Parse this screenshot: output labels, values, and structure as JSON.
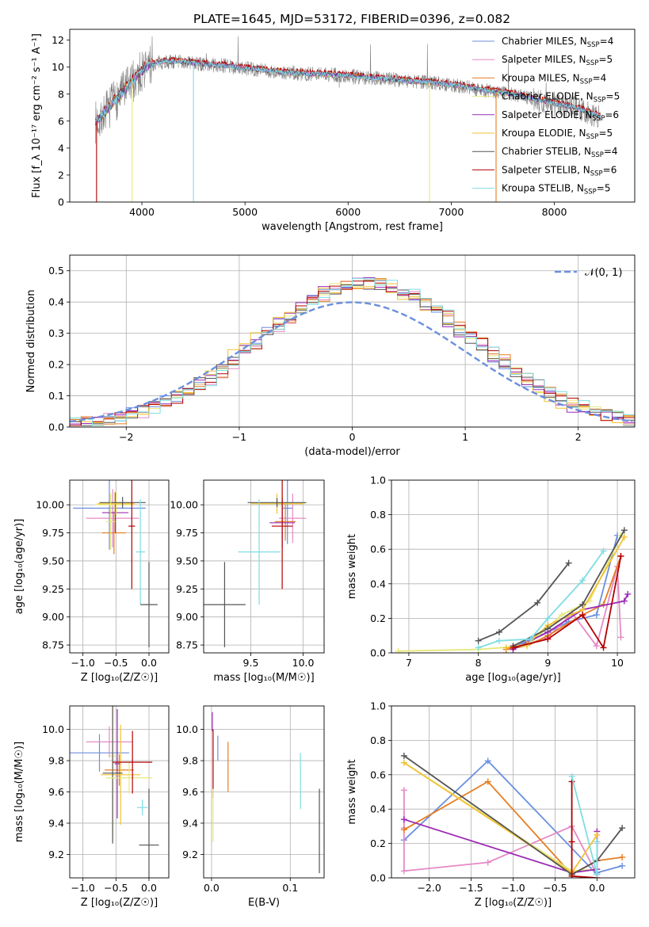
{
  "figure_title": "PLATE=1645, MJD=53172, FIBERID=0396, z=0.082",
  "colors": {
    "chab_miles": "#6b8fde",
    "salp_miles": "#e58ac6",
    "krou_miles": "#e67e22",
    "chab_elodie": "#e6e87a",
    "salp_elodie": "#9b2ab5",
    "krou_elodie": "#f1c232",
    "chab_stelib": "#555555",
    "salp_stelib": "#b30000",
    "krou_stelib": "#7fdde2",
    "normal": "#6b8fde",
    "data": "#808080"
  },
  "chart_data": [
    {
      "id": "spectrum",
      "type": "line",
      "title": "PLATE=1645, MJD=53172, FIBERID=0396, z=0.082",
      "xlabel": "wavelength [Angstrom, rest frame]",
      "ylabel": "Flux [f_λ 10⁻¹⁷ erg cm⁻² s⁻¹ A⁻¹]",
      "xlim": [
        3300,
        8780
      ],
      "ylim": [
        0,
        12.8
      ],
      "xticks": [
        4000,
        5000,
        6000,
        7000,
        8000
      ],
      "yticks": [
        0,
        2,
        4,
        6,
        8,
        10,
        12
      ],
      "grid": false,
      "legend_position": "top-right",
      "legend": [
        {
          "label": "Chabrier MILES, N",
          "sub": "SSP",
          "suffix": "=4",
          "color_key": "chab_miles"
        },
        {
          "label": "Salpeter MILES, N",
          "sub": "SSP",
          "suffix": "=5",
          "color_key": "salp_miles"
        },
        {
          "label": "Kroupa MILES, N",
          "sub": "SSP",
          "suffix": "=4",
          "color_key": "krou_miles"
        },
        {
          "label": "Chabrier ELODIE, N",
          "sub": "SSP",
          "suffix": "=5",
          "color_key": "chab_elodie"
        },
        {
          "label": "Salpeter ELODIE, N",
          "sub": "SSP",
          "suffix": "=6",
          "color_key": "salp_elodie"
        },
        {
          "label": "Kroupa ELODIE, N",
          "sub": "SSP",
          "suffix": "=5",
          "color_key": "krou_elodie"
        },
        {
          "label": "Chabrier STELIB, N",
          "sub": "SSP",
          "suffix": "=4",
          "color_key": "chab_stelib"
        },
        {
          "label": "Salpeter STELIB, N",
          "sub": "SSP",
          "suffix": "=6",
          "color_key": "salp_stelib"
        },
        {
          "label": "Kroupa STELIB, N",
          "sub": "SSP",
          "suffix": "=5",
          "color_key": "krou_stelib"
        }
      ],
      "continuum": {
        "x": [
          3550,
          3650,
          3750,
          3850,
          3950,
          4050,
          4200,
          4400,
          4600,
          4800,
          5000,
          5200,
          5400,
          5600,
          5800,
          6000,
          6200,
          6400,
          6600,
          6800,
          7000,
          7200,
          7400,
          7600,
          7800,
          8000,
          8200,
          8450
        ],
        "y": [
          5.9,
          6.7,
          7.6,
          8.4,
          9.3,
          10.1,
          10.4,
          10.4,
          10.2,
          10.1,
          9.9,
          9.75,
          9.6,
          9.5,
          9.45,
          9.35,
          9.2,
          9.1,
          8.95,
          8.85,
          8.7,
          8.45,
          8.2,
          8.0,
          7.65,
          7.3,
          7.0,
          6.3
        ]
      }
    },
    {
      "id": "residuals",
      "type": "line",
      "xlabel": "(data-model)/error",
      "ylabel": "Normed distribution",
      "xlim": [
        -2.5,
        2.5
      ],
      "ylim": [
        0,
        0.55
      ],
      "xticks": [
        -2,
        -1,
        0,
        1,
        2
      ],
      "yticks": [
        0.0,
        0.1,
        0.2,
        0.3,
        0.4,
        0.5
      ],
      "grid": true,
      "legend_position": "top-right",
      "legend": [
        {
          "label": "𝒩(0, 1)",
          "color_key": "normal",
          "style": "dashed"
        }
      ],
      "normal_curve": {
        "mu": 0,
        "sigma": 1
      }
    },
    {
      "id": "age_vs_Z",
      "type": "scatter",
      "xlabel": "Z [log₁₀(Z/Z☉)]",
      "ylabel": "age  [log₁₀(age/yr)]",
      "xlim": [
        -1.2,
        0.3
      ],
      "ylim": [
        8.68,
        10.22
      ],
      "xticks": [
        -1.0,
        -0.5,
        0.0
      ],
      "yticks": [
        8.75,
        9.0,
        9.25,
        9.5,
        9.75,
        10.0
      ],
      "grid": true,
      "points": [
        {
          "c": "chab_miles",
          "x": -0.6,
          "xerr": 0.55,
          "y": 9.97,
          "yerr": 0.37
        },
        {
          "c": "salp_miles",
          "x": -0.55,
          "xerr": 0.4,
          "y": 9.88,
          "yerr": 0.26
        },
        {
          "c": "krou_miles",
          "x": -0.53,
          "xerr": 0.18,
          "y": 9.75,
          "yerr": 0.19
        },
        {
          "c": "chab_elodie",
          "x": -0.52,
          "xerr": 0.3,
          "y": 10.0,
          "yerr": 0.12
        },
        {
          "c": "salp_elodie",
          "x": -0.51,
          "xerr": 0.2,
          "y": 9.93,
          "yerr": 0.18
        },
        {
          "c": "krou_elodie",
          "x": -0.5,
          "xerr": 0.28,
          "y": 10.01,
          "yerr": 0.1
        },
        {
          "c": "chab_stelib",
          "x": -0.4,
          "xerr": 0.35,
          "y": 10.02,
          "yerr": 0.05
        },
        {
          "c": "chab_elodie",
          "x": -0.58,
          "xerr": 0.07,
          "y": 9.85,
          "yerr": 0.25
        },
        {
          "c": "salp_stelib",
          "x": -0.26,
          "xerr": 0.05,
          "y": 9.81,
          "yerr": 0.56
        },
        {
          "c": "krou_stelib",
          "x": -0.13,
          "xerr": 0.07,
          "y": 9.58,
          "yerr": 0.47
        },
        {
          "c": "chab_stelib",
          "x": 0.0,
          "xerr": 0.13,
          "y": 9.11,
          "yerr": 0.38
        }
      ]
    },
    {
      "id": "age_vs_mass",
      "type": "scatter",
      "xlabel": "mass [log₁₀(M/M☉)]",
      "xlim": [
        9.05,
        10.2
      ],
      "ylim": [
        8.68,
        10.22
      ],
      "xticks": [
        9.0,
        9.5,
        10.0
      ],
      "yticks": [
        8.75,
        9.0,
        9.25,
        9.5,
        9.75,
        10.0
      ],
      "grid": true,
      "points": [
        {
          "c": "chab_miles",
          "x": 9.85,
          "xerr": 0.05,
          "y": 9.97,
          "yerr": 0.32
        },
        {
          "c": "salp_miles",
          "x": 9.9,
          "xerr": 0.13,
          "y": 9.88,
          "yerr": 0.22
        },
        {
          "c": "krou_miles",
          "x": 9.83,
          "xerr": 0.1,
          "y": 9.85,
          "yerr": 0.17
        },
        {
          "c": "chab_elodie",
          "x": 9.8,
          "xerr": 0.22,
          "y": 10.01,
          "yerr": 0.11
        },
        {
          "c": "salp_elodie",
          "x": 9.8,
          "xerr": 0.12,
          "y": 9.84,
          "yerr": 0.22
        },
        {
          "c": "krou_elodie",
          "x": 9.75,
          "xerr": 0.25,
          "y": 10.01,
          "yerr": 0.09
        },
        {
          "c": "chab_stelib",
          "x": 9.75,
          "xerr": 0.28,
          "y": 10.02,
          "yerr": 0.04
        },
        {
          "c": "salp_stelib",
          "x": 9.8,
          "xerr": 0.1,
          "y": 9.81,
          "yerr": 0.56
        },
        {
          "c": "krou_stelib",
          "x": 9.58,
          "xerr": 0.2,
          "y": 9.58,
          "yerr": 0.47
        },
        {
          "c": "chab_stelib",
          "x": 9.25,
          "xerr": 0.2,
          "y": 9.11,
          "yerr": 0.38
        }
      ]
    },
    {
      "id": "massweight_vs_age",
      "type": "line",
      "xlabel": "age  [log₁₀(age/yr)]",
      "ylabel": "mass weight",
      "xlim": [
        6.75,
        10.25
      ],
      "ylim": [
        0,
        1.0
      ],
      "xticks": [
        7,
        8,
        9,
        10
      ],
      "yticks": [
        0.0,
        0.2,
        0.4,
        0.6,
        0.8,
        1.0
      ],
      "grid": true,
      "series": [
        {
          "c": "chab_miles",
          "x": [
            8.5,
            8.75,
            9.0,
            9.3,
            9.7,
            10.0
          ],
          "y": [
            0.03,
            0.08,
            0.12,
            0.18,
            0.22,
            0.68
          ]
        },
        {
          "c": "salp_miles",
          "x": [
            8.5,
            8.7,
            9.0,
            9.35,
            9.7,
            10.0,
            10.05
          ],
          "y": [
            0.03,
            0.05,
            0.09,
            0.23,
            0.04,
            0.5,
            0.09
          ]
        },
        {
          "c": "krou_miles",
          "x": [
            8.4,
            8.7,
            9.0,
            9.5,
            9.8,
            10.05
          ],
          "y": [
            0.02,
            0.04,
            0.1,
            0.22,
            0.28,
            0.56
          ]
        },
        {
          "c": "chab_elodie",
          "x": [
            6.85,
            8.0,
            8.7,
            9.2,
            9.6,
            10.05
          ],
          "y": [
            0.01,
            0.02,
            0.04,
            0.22,
            0.3,
            0.68
          ]
        },
        {
          "c": "salp_elodie",
          "x": [
            8.5,
            9.0,
            9.5,
            10.1,
            10.15
          ],
          "y": [
            0.02,
            0.12,
            0.25,
            0.3,
            0.34
          ]
        },
        {
          "c": "krou_elodie",
          "x": [
            8.4,
            8.7,
            9.0,
            9.5,
            10.1
          ],
          "y": [
            0.03,
            0.05,
            0.16,
            0.25,
            0.67
          ]
        },
        {
          "c": "chab_stelib",
          "x": [
            8.0,
            8.3,
            8.85,
            9.3
          ],
          "y": [
            0.07,
            0.12,
            0.29,
            0.52
          ]
        },
        {
          "c": "chab_stelib",
          "x": [
            8.5,
            9.0,
            9.5,
            10.1
          ],
          "y": [
            0.04,
            0.14,
            0.28,
            0.71
          ]
        },
        {
          "c": "salp_stelib",
          "x": [
            8.5,
            9.0,
            9.5,
            9.8,
            10.05
          ],
          "y": [
            0.03,
            0.08,
            0.22,
            0.03,
            0.56
          ]
        },
        {
          "c": "krou_stelib",
          "x": [
            8.0,
            8.3,
            8.75,
            9.0,
            9.5,
            9.8
          ],
          "y": [
            0.03,
            0.07,
            0.08,
            0.2,
            0.42,
            0.59
          ]
        }
      ]
    },
    {
      "id": "mass_vs_Z",
      "type": "scatter",
      "xlabel": "Z [log₁₀(Z/Z☉)]",
      "ylabel": "mass [log₁₀(M/M☉)]",
      "xlim": [
        -1.2,
        0.3
      ],
      "ylim": [
        9.05,
        10.15
      ],
      "xticks": [
        -1.0,
        -0.5,
        0.0
      ],
      "yticks": [
        9.2,
        9.4,
        9.6,
        9.8,
        10.0
      ],
      "grid": true,
      "points": [
        {
          "c": "chab_miles",
          "x": -0.75,
          "xerr": 0.45,
          "y": 9.85,
          "yerr": 0.12
        },
        {
          "c": "salp_miles",
          "x": -0.6,
          "xerr": 0.35,
          "y": 9.92,
          "yerr": 0.1
        },
        {
          "c": "krou_miles",
          "x": -0.45,
          "xerr": 0.22,
          "y": 9.74,
          "yerr": 0.1
        },
        {
          "c": "chab_elodie",
          "x": -0.55,
          "xerr": 0.05,
          "y": 9.83,
          "yerr": 0.52
        },
        {
          "c": "salp_elodie",
          "x": -0.48,
          "xerr": 0.04,
          "y": 9.78,
          "yerr": 0.35
        },
        {
          "c": "krou_elodie",
          "x": -0.43,
          "xerr": 0.3,
          "y": 9.71,
          "yerr": 0.32
        },
        {
          "c": "chab_stelib",
          "x": -0.55,
          "xerr": 0.15,
          "y": 9.72,
          "yerr": 0.45
        },
        {
          "c": "chab_elodie",
          "x": -0.3,
          "xerr": 0.35,
          "y": 9.69,
          "yerr": 0.1
        },
        {
          "c": "salp_stelib",
          "x": -0.25,
          "xerr": 0.3,
          "y": 9.79,
          "yerr": 0.2
        },
        {
          "c": "krou_stelib",
          "x": -0.1,
          "xerr": 0.08,
          "y": 9.5,
          "yerr": 0.05
        },
        {
          "c": "chab_stelib",
          "x": 0.0,
          "xerr": 0.15,
          "y": 9.26,
          "yerr": 0.36
        }
      ]
    },
    {
      "id": "mass_vs_ebv",
      "type": "scatter",
      "xlabel": "E(B-V)",
      "xlim": [
        -0.01,
        0.143
      ],
      "ylim": [
        9.05,
        10.15
      ],
      "xticks": [
        0.0,
        0.1
      ],
      "yticks": [
        9.2,
        9.4,
        9.6,
        9.8,
        10.0
      ],
      "grid": true,
      "points": [
        {
          "c": "salp_elodie",
          "x": 0.001,
          "xerr": 0,
          "y": 10.05,
          "yerr": 0.06
        },
        {
          "c": "salp_stelib",
          "x": 0.002,
          "xerr": 0,
          "y": 9.78,
          "yerr": 0.22
        },
        {
          "c": "chab_elodie",
          "x": 0.002,
          "xerr": 0,
          "y": 9.45,
          "yerr": 0.17
        },
        {
          "c": "chab_miles",
          "x": 0.008,
          "xerr": 0,
          "y": 9.88,
          "yerr": 0.08
        },
        {
          "c": "krou_miles",
          "x": 0.021,
          "xerr": 0,
          "y": 9.76,
          "yerr": 0.16
        },
        {
          "c": "krou_stelib",
          "x": 0.113,
          "xerr": 0,
          "y": 9.67,
          "yerr": 0.18
        },
        {
          "c": "chab_stelib",
          "x": 0.137,
          "xerr": 0,
          "y": 9.35,
          "yerr": 0.27
        }
      ]
    },
    {
      "id": "massweight_vs_Z",
      "type": "line",
      "xlabel": "Z [log₁₀(Z/Z☉)]",
      "ylabel": "mass weight",
      "xlim": [
        -2.45,
        0.45
      ],
      "ylim": [
        0,
        1.0
      ],
      "xticks": [
        -2.0,
        -1.5,
        -1.0,
        -0.5,
        0.0
      ],
      "yticks": [
        0.0,
        0.2,
        0.4,
        0.6,
        0.8,
        1.0
      ],
      "grid": true,
      "series": [
        {
          "c": "chab_miles",
          "x": [
            -2.3,
            -1.3,
            0.0,
            0.0,
            0.3
          ],
          "y": [
            0.22,
            0.68,
            0.02,
            0.03,
            0.07
          ]
        },
        {
          "c": "salp_miles",
          "x": [
            -2.3,
            -2.3,
            -2.3,
            -1.3,
            -0.3,
            0.0
          ],
          "y": [
            0.51,
            0.29,
            0.04,
            0.09,
            0.3,
            0.02
          ]
        },
        {
          "c": "krou_miles",
          "x": [
            -2.3,
            -1.3,
            -0.3,
            0.0,
            0.3
          ],
          "y": [
            0.28,
            0.56,
            0.02,
            0.1,
            0.12
          ]
        },
        {
          "c": "chab_elodie",
          "x": [
            -2.3,
            -0.3,
            0.0
          ],
          "y": [
            0.67,
            0.04,
            0.05
          ]
        },
        {
          "c": "salp_elodie",
          "x": [
            -2.3,
            -0.3,
            0.0,
            0.0
          ],
          "y": [
            0.34,
            0.03,
            0.05,
            0.27
          ]
        },
        {
          "c": "krou_elodie",
          "x": [
            -2.3,
            -0.3,
            0.0
          ],
          "y": [
            0.67,
            0.03,
            0.25
          ]
        },
        {
          "c": "chab_stelib",
          "x": [
            -2.3,
            -0.3,
            0.0,
            0.3
          ],
          "y": [
            0.71,
            0.02,
            0.1,
            0.29
          ]
        },
        {
          "c": "salp_stelib",
          "x": [
            -0.3,
            -0.3,
            -0.3,
            0.0
          ],
          "y": [
            0.56,
            0.21,
            0.01,
            0.0
          ]
        },
        {
          "c": "krou_stelib",
          "x": [
            -0.3,
            0.0,
            0.0
          ],
          "y": [
            0.59,
            0.02,
            0.21
          ]
        }
      ]
    }
  ]
}
